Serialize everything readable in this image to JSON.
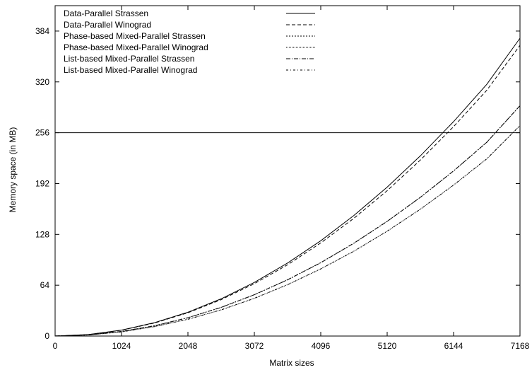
{
  "chart_data": {
    "type": "line",
    "xlabel": "Matrix sizes",
    "ylabel": "Memory space (in MB)",
    "xlim": [
      0,
      7168
    ],
    "ylim": [
      0,
      416
    ],
    "xticks": [
      0,
      1024,
      2048,
      3072,
      4096,
      5120,
      6144,
      7168
    ],
    "yticks": [
      0,
      64,
      128,
      192,
      256,
      320,
      384
    ],
    "legend_position": "top-left",
    "grid": false,
    "reference_line": {
      "y": 256
    },
    "x": [
      0,
      512,
      1024,
      1536,
      2048,
      2560,
      3072,
      3584,
      4096,
      4608,
      5120,
      5632,
      6144,
      6656,
      7168
    ],
    "series": [
      {
        "name": "Data-Parallel Strassen",
        "dash": "",
        "values": [
          0,
          1.9,
          7.5,
          16.9,
          30.0,
          46.9,
          67.5,
          91.9,
          120.0,
          151.9,
          187.5,
          226.9,
          270.0,
          316.9,
          375.0
        ]
      },
      {
        "name": "Data-Parallel Winograd",
        "dash": "5,3",
        "values": [
          0,
          1.8,
          7.3,
          16.5,
          29.3,
          45.8,
          65.9,
          89.7,
          117.2,
          148.3,
          183.1,
          221.6,
          263.7,
          309.5,
          366.0
        ]
      },
      {
        "name": "Phase-based Mixed-Parallel Strassen",
        "dash": "2,2",
        "values": [
          0,
          1.4,
          5.8,
          13.0,
          23.1,
          36.1,
          52.0,
          70.8,
          92.4,
          117.0,
          144.4,
          174.7,
          207.9,
          244.0,
          290.0
        ]
      },
      {
        "name": "Phase-based Mixed-Parallel Winograd",
        "dash": "1,1",
        "values": [
          0,
          1.3,
          5.3,
          11.9,
          21.1,
          33.0,
          47.5,
          64.7,
          84.5,
          106.9,
          132.0,
          159.7,
          190.1,
          223.1,
          265.0
        ]
      },
      {
        "name": "List-based Mixed-Parallel Strassen",
        "dash": "6,2,1,2",
        "values": [
          0,
          1.4,
          5.8,
          13.0,
          23.1,
          36.1,
          52.0,
          70.8,
          92.4,
          117.0,
          144.4,
          174.7,
          207.9,
          244.0,
          290.0
        ]
      },
      {
        "name": "List-based Mixed-Parallel Winograd",
        "dash": "3,3,1,3",
        "values": [
          0,
          1.3,
          5.3,
          11.9,
          21.1,
          33.0,
          47.5,
          64.7,
          84.5,
          106.9,
          132.0,
          159.7,
          190.1,
          223.1,
          265.0
        ]
      }
    ]
  }
}
